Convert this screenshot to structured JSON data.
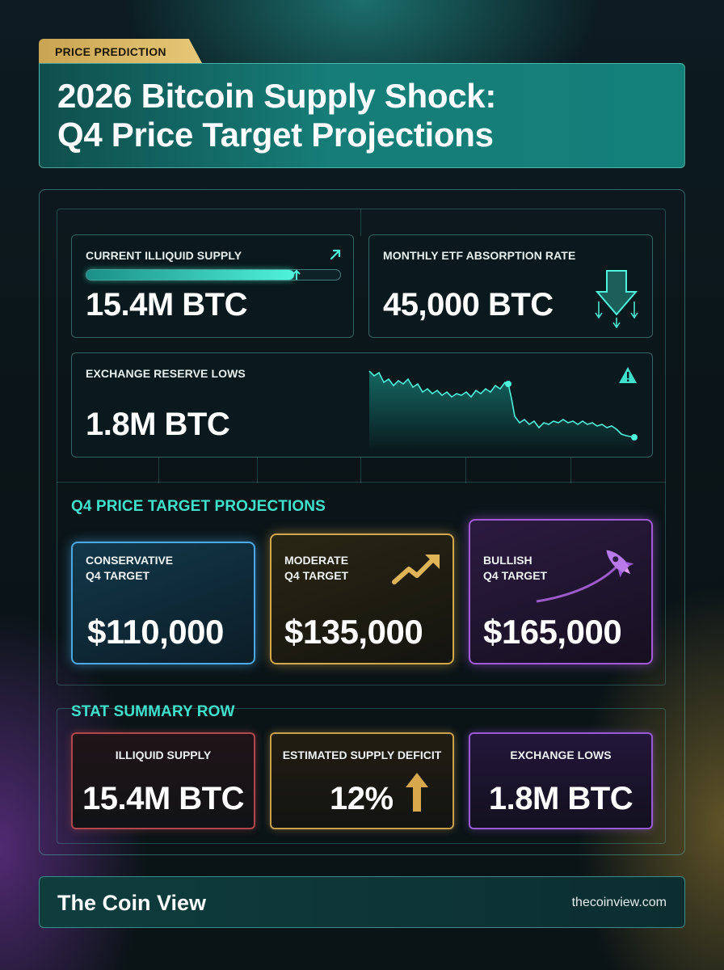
{
  "header": {
    "badge": "PRICE PREDICTION",
    "title_line1": "2026 Bitcoin Supply Shock:",
    "title_line2": "Q4 Price Target Projections"
  },
  "stats": {
    "illiquid": {
      "label": "CURRENT ILLIQUID SUPPLY",
      "value": "15.4M BTC",
      "progress": 0.82
    },
    "etf": {
      "label": "MONTHLY ETF ABSORPTION RATE",
      "value": "45,000 BTC"
    },
    "reserve": {
      "label": "EXCHANGE RESERVE LOWS",
      "value": "1.8M BTC"
    }
  },
  "projections": {
    "title": "Q4 PRICE TARGET PROJECTIONS",
    "conservative": {
      "label1": "CONSERVATIVE",
      "label2": "Q4 TARGET",
      "value": "$110,000",
      "color": "#4aa9e6"
    },
    "moderate": {
      "label1": "MODERATE",
      "label2": "Q4 TARGET",
      "value": "$135,000",
      "color": "#d4a84a"
    },
    "bullish": {
      "label1": "BULLISH",
      "label2": "Q4 TARGET",
      "value": "$165,000",
      "color": "#a45ad8"
    }
  },
  "summary": {
    "title": "STAT SUMMARY ROW",
    "illiquid": {
      "label": "ILLIQUID SUPPLY",
      "value": "15.4M BTC"
    },
    "deficit": {
      "label": "ESTIMATED SUPPLY DEFICIT",
      "value": "12%"
    },
    "exchange": {
      "label": "EXCHANGE LOWS",
      "value": "1.8M BTC"
    }
  },
  "footer": {
    "brand": "The Coin View",
    "url": "thecoinview.com"
  },
  "icons": {
    "illiquid": "arrow-up-right-icon",
    "etf": "arrow-down-icon",
    "reserve": "warning-icon",
    "moderate": "trend-up-icon",
    "bullish": "rocket-icon",
    "deficit": "arrow-up-icon"
  },
  "colors": {
    "accent": "#3fe0cc",
    "title_bg": "#167d78",
    "badge": "#d9b766"
  }
}
